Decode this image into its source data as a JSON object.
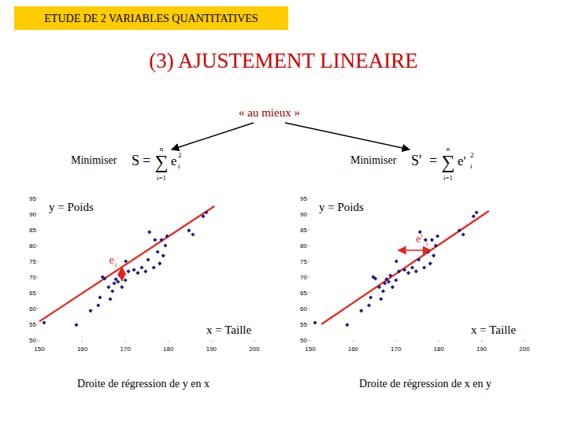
{
  "header": "ETUDE DE 2 VARIABLES QUANTITATIVES",
  "title": "(3) AJUSTEMENT LINEAIRE",
  "subtitle": "« au mieux »",
  "criteria": [
    {
      "label": "Minimiser",
      "lhs": "S",
      "eq": "=",
      "sum": "∑",
      "upper": "n",
      "lower": "i=1",
      "term": "e",
      "sub": "i",
      "sup": "2"
    },
    {
      "label": "Minimiser",
      "lhs": "S'",
      "eq": "=",
      "sum": "∑",
      "upper": "n",
      "lower": "i=1",
      "term": "e'",
      "sub": "i",
      "sup": "2"
    }
  ],
  "chart_data": [
    {
      "type": "scatter",
      "y_label": "y = Poids",
      "x_label": "x = Taille",
      "caption": "Droite de régression de y en x",
      "x": [
        151.1,
        158.6,
        161.9,
        163.7,
        164.1,
        164.7,
        165.2,
        166.1,
        166.5,
        167.0,
        167.4,
        167.8,
        168.3,
        168.7,
        169.2,
        170.0,
        170.1,
        170.7,
        172.0,
        172.9,
        173.8,
        174.7,
        175.3,
        175.6,
        176.6,
        176.9,
        177.5,
        178.0,
        178.4,
        178.8,
        179.3,
        179.7,
        184.8,
        185.7,
        188.1,
        188.8
      ],
      "values": [
        55.5,
        54.8,
        59.3,
        61.0,
        63.5,
        70.0,
        69.5,
        66.8,
        63.0,
        65.5,
        68.0,
        69.3,
        68.5,
        70.5,
        66.8,
        69.0,
        75.0,
        71.8,
        72.3,
        71.3,
        73.0,
        71.8,
        75.5,
        84.3,
        73.0,
        81.8,
        78.0,
        74.3,
        81.8,
        76.8,
        80.0,
        83.0,
        84.8,
        83.5,
        89.3,
        90.5
      ],
      "color": "#1c1c78",
      "marker": "diamond",
      "xlim": [
        150,
        200
      ],
      "ylim": [
        50,
        95
      ],
      "xticks": [
        150,
        160,
        170,
        180,
        190,
        200
      ],
      "yticks": [
        50,
        55,
        60,
        65,
        70,
        75,
        80,
        85,
        90,
        95
      ],
      "regression_line": {
        "x": [
          150,
          190.7
        ],
        "values": [
          55.9,
          92.5
        ],
        "color": "#e8231c"
      },
      "residual": {
        "label": "e",
        "sub": "i",
        "x": [
          169.2,
          169.2
        ],
        "values": [
          73.2,
          68.8
        ],
        "color": "#e8231c"
      }
    },
    {
      "type": "scatter",
      "y_label": "y = Poids",
      "x_label": "x = Taille",
      "caption": "Droite de régression de x en y",
      "x": [
        151.1,
        158.6,
        161.9,
        163.7,
        164.1,
        164.7,
        165.2,
        166.1,
        166.5,
        167.0,
        167.4,
        167.8,
        168.3,
        168.7,
        169.2,
        170.0,
        170.1,
        170.7,
        172.0,
        172.9,
        173.8,
        174.7,
        175.3,
        175.6,
        176.6,
        176.9,
        177.5,
        178.0,
        178.4,
        178.8,
        179.3,
        179.7,
        184.8,
        185.7,
        188.1,
        188.8
      ],
      "values": [
        55.5,
        54.8,
        59.3,
        61.0,
        63.5,
        70.0,
        69.5,
        66.8,
        63.0,
        65.5,
        68.0,
        69.3,
        68.5,
        70.5,
        66.8,
        69.0,
        75.0,
        71.8,
        72.3,
        71.3,
        73.0,
        71.8,
        75.5,
        84.3,
        73.0,
        81.8,
        78.0,
        74.3,
        81.8,
        76.8,
        80.0,
        83.0,
        84.8,
        83.5,
        89.3,
        90.5
      ],
      "color": "#1c1c78",
      "marker": "diamond",
      "xlim": [
        150,
        200
      ],
      "ylim": [
        50,
        95
      ],
      "xticks": [
        150,
        160,
        170,
        180,
        190,
        200
      ],
      "yticks": [
        50,
        55,
        60,
        65,
        70,
        75,
        80,
        85,
        90,
        95
      ],
      "regression_line": {
        "x": [
          152.6,
          191.7
        ],
        "values": [
          55.0,
          91.0
        ],
        "color": "#e8231c"
      },
      "residual": {
        "label": "e'",
        "sub": "i",
        "x": [
          170.5,
          178.1
        ],
        "values": [
          78.5,
          78.5
        ],
        "color": "#e8231c"
      }
    }
  ]
}
